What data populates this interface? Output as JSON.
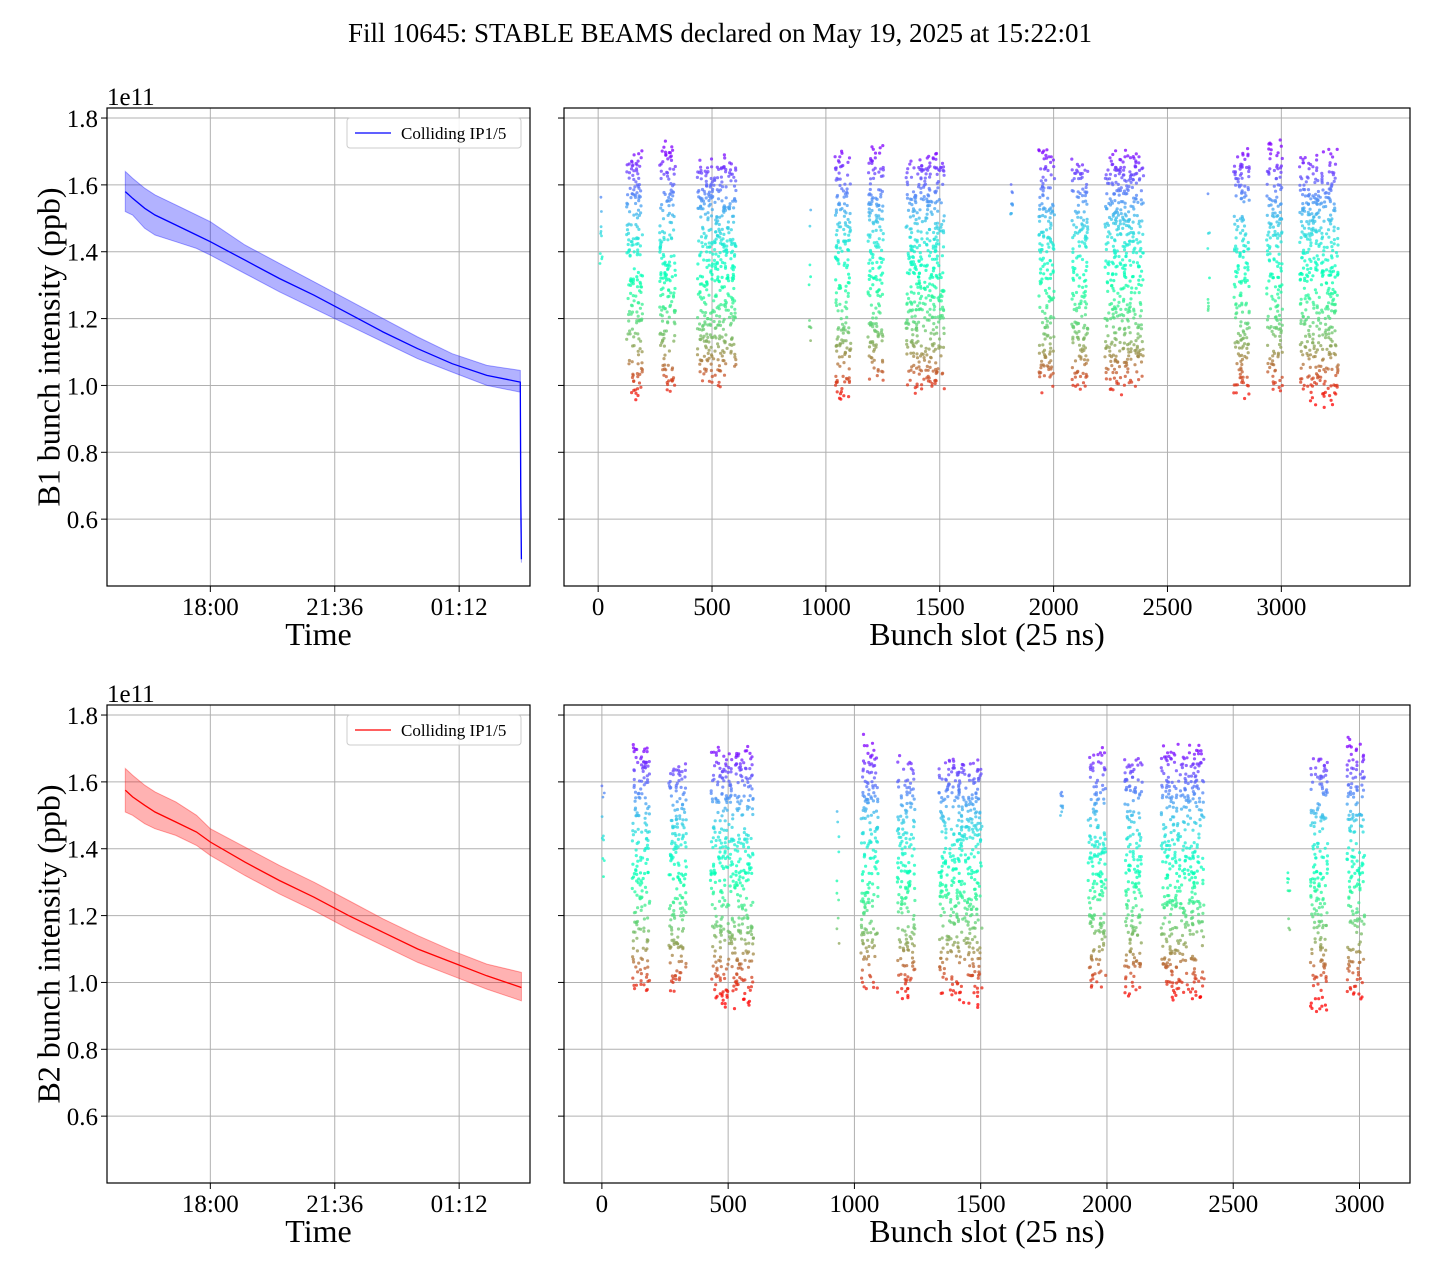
{
  "title": "Fill 10645: STABLE BEAMS declared on May 19, 2025 at 15:22:01",
  "colors": {
    "beam1": "#0000ff",
    "beam2": "#ff0000",
    "grid": "#b0b0b0",
    "axes": "#000000"
  },
  "colormap": "rainbow",
  "chart_data": [
    {
      "id": "b1_time",
      "type": "line",
      "beam": "B1",
      "color": "#0000ff",
      "ylabel": "B1 bunch intensity (ppb)",
      "xlabel": "Time",
      "offset_text": "1e11",
      "xticks": [
        "18:00",
        "21:36",
        "01:12"
      ],
      "xtick_hours_after_midnight_may19": [
        18.0,
        21.6,
        25.2
      ],
      "xlim_hours_after_midnight_may19": [
        15.01,
        27.25
      ],
      "yticks": [
        0.6,
        0.8,
        1.0,
        1.2,
        1.4,
        1.6,
        1.8
      ],
      "ylim": [
        0.4,
        1.83
      ],
      "grid": true,
      "legend": {
        "position": "top-right",
        "label": "Colliding IP1/5"
      },
      "series": [
        {
          "name": "Colliding IP1/5",
          "x_hours_after_midnight_may19": [
            15.54,
            15.75,
            16.1,
            16.4,
            17.0,
            17.6,
            18.0,
            19.0,
            20.0,
            21.0,
            22.0,
            23.0,
            24.0,
            25.0,
            26.0,
            26.97,
            26.98,
            27.0
          ],
          "mean": [
            1.58,
            1.56,
            1.53,
            1.51,
            1.48,
            1.45,
            1.43,
            1.375,
            1.32,
            1.27,
            1.215,
            1.16,
            1.11,
            1.065,
            1.03,
            1.01,
            0.7,
            0.48
          ],
          "lower": [
            1.52,
            1.51,
            1.47,
            1.45,
            1.43,
            1.41,
            1.39,
            1.335,
            1.28,
            1.23,
            1.18,
            1.13,
            1.08,
            1.04,
            1.0,
            0.98,
            0.6,
            0.47
          ],
          "upper": [
            1.64,
            1.62,
            1.59,
            1.57,
            1.54,
            1.51,
            1.49,
            1.42,
            1.365,
            1.31,
            1.255,
            1.2,
            1.145,
            1.095,
            1.06,
            1.045,
            0.8,
            0.49
          ]
        }
      ]
    },
    {
      "id": "b1_slot",
      "type": "scatter",
      "beam": "B1",
      "xlabel": "Bunch slot (25 ns)",
      "xticks": [
        0,
        500,
        1000,
        1500,
        2000,
        2500,
        3000
      ],
      "xlim": [
        -150,
        3565
      ],
      "ylim": [
        0.4,
        1.83
      ],
      "yticks": [
        0.6,
        0.8,
        1.0,
        1.2,
        1.4,
        1.6,
        1.8
      ],
      "grid": true,
      "colormap": "rainbow",
      "trains": [
        {
          "start": 8,
          "end": 18,
          "min": 1.35,
          "max": 1.56,
          "dense": false
        },
        {
          "start": 125,
          "end": 195,
          "min": 0.94,
          "max": 1.73,
          "dense": true
        },
        {
          "start": 270,
          "end": 340,
          "min": 0.95,
          "max": 1.75,
          "dense": true
        },
        {
          "start": 435,
          "end": 605,
          "min": 0.98,
          "max": 1.7,
          "dense": true
        },
        {
          "start": 925,
          "end": 935,
          "min": 1.09,
          "max": 1.58,
          "dense": false
        },
        {
          "start": 1040,
          "end": 1110,
          "min": 0.94,
          "max": 1.74,
          "dense": true
        },
        {
          "start": 1185,
          "end": 1255,
          "min": 0.96,
          "max": 1.74,
          "dense": true
        },
        {
          "start": 1350,
          "end": 1520,
          "min": 0.95,
          "max": 1.72,
          "dense": true
        },
        {
          "start": 1810,
          "end": 1820,
          "min": 1.48,
          "max": 1.59,
          "dense": false
        },
        {
          "start": 1935,
          "end": 2005,
          "min": 0.96,
          "max": 1.73,
          "dense": true
        },
        {
          "start": 2080,
          "end": 2150,
          "min": 0.96,
          "max": 1.72,
          "dense": true
        },
        {
          "start": 2225,
          "end": 2395,
          "min": 0.96,
          "max": 1.72,
          "dense": true
        },
        {
          "start": 2675,
          "end": 2685,
          "min": 1.04,
          "max": 1.58,
          "dense": false
        },
        {
          "start": 2790,
          "end": 2860,
          "min": 0.94,
          "max": 1.73,
          "dense": true
        },
        {
          "start": 2935,
          "end": 3005,
          "min": 0.95,
          "max": 1.75,
          "dense": true
        },
        {
          "start": 3080,
          "end": 3250,
          "min": 0.92,
          "max": 1.72,
          "dense": true
        }
      ]
    },
    {
      "id": "b2_time",
      "type": "line",
      "beam": "B2",
      "color": "#ff0000",
      "ylabel": "B2 bunch intensity (ppb)",
      "xlabel": "Time",
      "offset_text": "1e11",
      "xticks": [
        "18:00",
        "21:36",
        "01:12"
      ],
      "xtick_hours_after_midnight_may19": [
        18.0,
        21.6,
        25.2
      ],
      "xlim_hours_after_midnight_may19": [
        15.01,
        27.25
      ],
      "yticks": [
        0.6,
        0.8,
        1.0,
        1.2,
        1.4,
        1.6,
        1.8
      ],
      "ylim": [
        0.4,
        1.83
      ],
      "grid": true,
      "legend": {
        "position": "top-right",
        "label": "Colliding IP1/5"
      },
      "series": [
        {
          "name": "Colliding IP1/5",
          "x_hours_after_midnight_may19": [
            15.54,
            15.75,
            16.1,
            16.4,
            17.0,
            17.6,
            18.0,
            19.0,
            20.0,
            21.0,
            22.0,
            23.0,
            24.0,
            25.0,
            26.0,
            27.0
          ],
          "mean": [
            1.575,
            1.555,
            1.53,
            1.51,
            1.48,
            1.45,
            1.42,
            1.36,
            1.305,
            1.255,
            1.2,
            1.15,
            1.1,
            1.06,
            1.02,
            0.985
          ],
          "lower": [
            1.51,
            1.5,
            1.475,
            1.46,
            1.44,
            1.41,
            1.38,
            1.32,
            1.265,
            1.215,
            1.16,
            1.11,
            1.06,
            1.02,
            0.98,
            0.945
          ],
          "upper": [
            1.64,
            1.62,
            1.59,
            1.57,
            1.54,
            1.5,
            1.46,
            1.405,
            1.35,
            1.3,
            1.245,
            1.19,
            1.14,
            1.095,
            1.055,
            1.03
          ]
        }
      ]
    },
    {
      "id": "b2_slot",
      "type": "scatter",
      "beam": "B2",
      "xlabel": "Bunch slot (25 ns)",
      "xticks": [
        0,
        500,
        1000,
        1500,
        2000,
        2500,
        3000
      ],
      "xlim": [
        -150,
        3200
      ],
      "ylim": [
        0.4,
        1.83
      ],
      "yticks": [
        0.6,
        0.8,
        1.0,
        1.2,
        1.4,
        1.6,
        1.8
      ],
      "grid": true,
      "colormap": "rainbow",
      "trains": [
        {
          "start": 0,
          "end": 12,
          "min": 1.27,
          "max": 1.62,
          "dense": false
        },
        {
          "start": 120,
          "end": 190,
          "min": 0.94,
          "max": 1.75,
          "dense": true
        },
        {
          "start": 265,
          "end": 335,
          "min": 0.92,
          "max": 1.69,
          "dense": true
        },
        {
          "start": 430,
          "end": 600,
          "min": 0.89,
          "max": 1.73,
          "dense": true
        },
        {
          "start": 930,
          "end": 940,
          "min": 1.01,
          "max": 1.56,
          "dense": false
        },
        {
          "start": 1025,
          "end": 1095,
          "min": 0.95,
          "max": 1.77,
          "dense": true
        },
        {
          "start": 1170,
          "end": 1240,
          "min": 0.93,
          "max": 1.7,
          "dense": true
        },
        {
          "start": 1335,
          "end": 1505,
          "min": 0.9,
          "max": 1.7,
          "dense": true
        },
        {
          "start": 1815,
          "end": 1825,
          "min": 1.5,
          "max": 1.59,
          "dense": false
        },
        {
          "start": 1925,
          "end": 1995,
          "min": 0.94,
          "max": 1.72,
          "dense": true
        },
        {
          "start": 2070,
          "end": 2140,
          "min": 0.94,
          "max": 1.71,
          "dense": true
        },
        {
          "start": 2215,
          "end": 2385,
          "min": 0.91,
          "max": 1.74,
          "dense": true
        },
        {
          "start": 2715,
          "end": 2725,
          "min": 1.05,
          "max": 1.58,
          "dense": false
        },
        {
          "start": 2805,
          "end": 2875,
          "min": 0.88,
          "max": 1.71,
          "dense": true
        },
        {
          "start": 2950,
          "end": 3020,
          "min": 0.92,
          "max": 1.77,
          "dense": true
        }
      ]
    }
  ]
}
